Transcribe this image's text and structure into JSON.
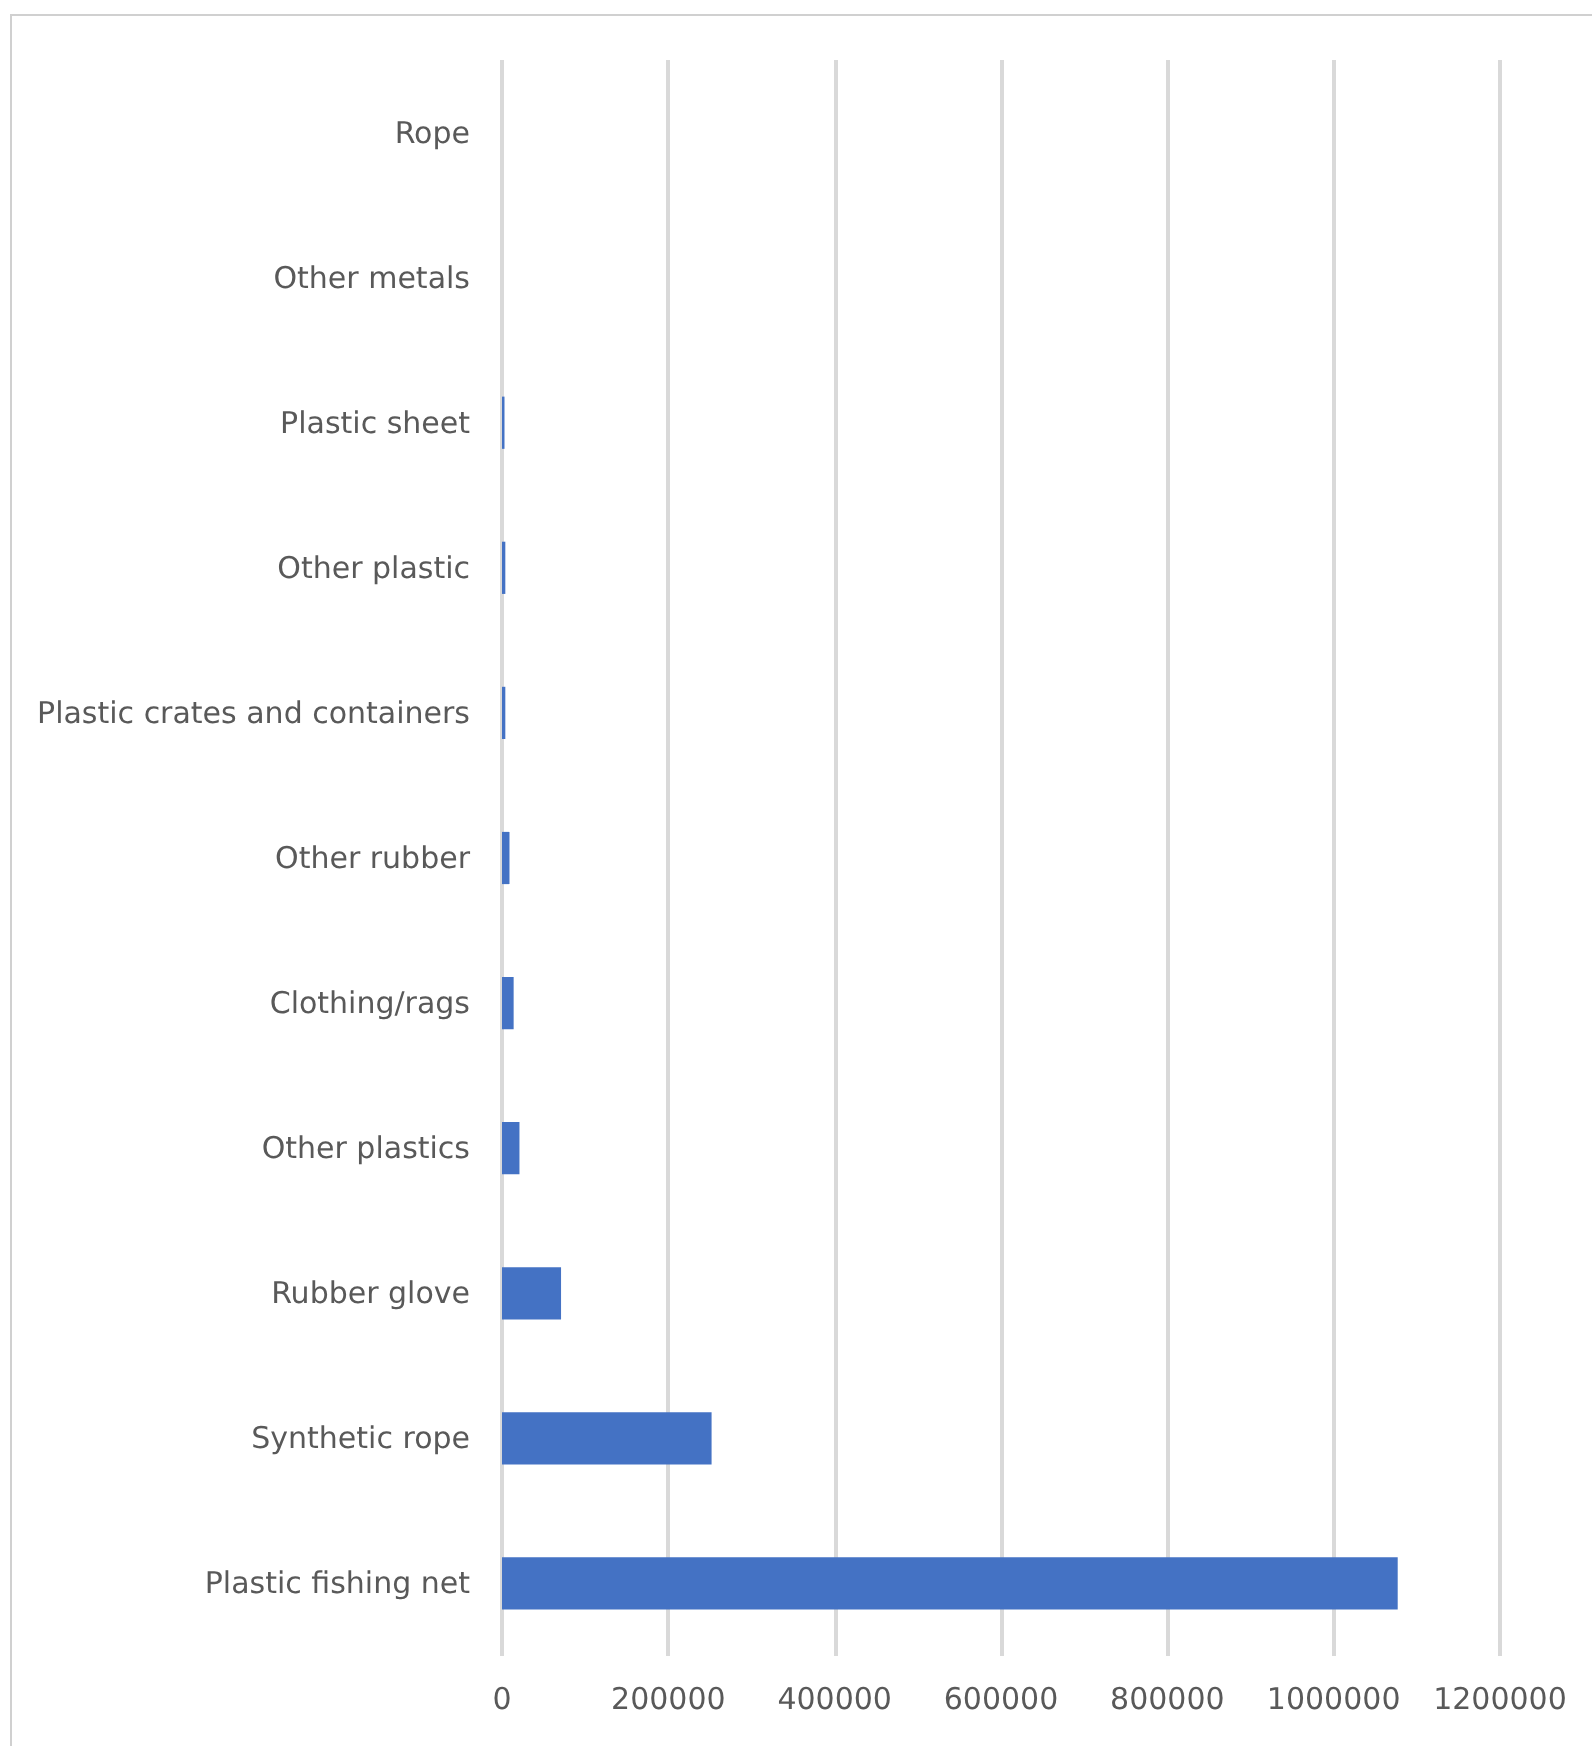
{
  "chart_data": {
    "type": "bar",
    "orientation": "horizontal",
    "categories": [
      "Rope",
      "Other metals",
      "Plastic sheet",
      "Other plastic",
      "Plastic crates and containers",
      "Other rubber",
      "Clothing/rags",
      "Other plastics",
      "Rubber glove",
      "Synthetic rope",
      "Plastic fishing net"
    ],
    "values": [
      0,
      0,
      3000,
      4000,
      4000,
      9000,
      14000,
      21000,
      71000,
      252000,
      1077000
    ],
    "color": "#4472c4",
    "xlim": [
      0,
      1200000
    ],
    "xticks": [
      0,
      200000,
      400000,
      600000,
      800000,
      1000000,
      1200000
    ],
    "grid": "x"
  }
}
